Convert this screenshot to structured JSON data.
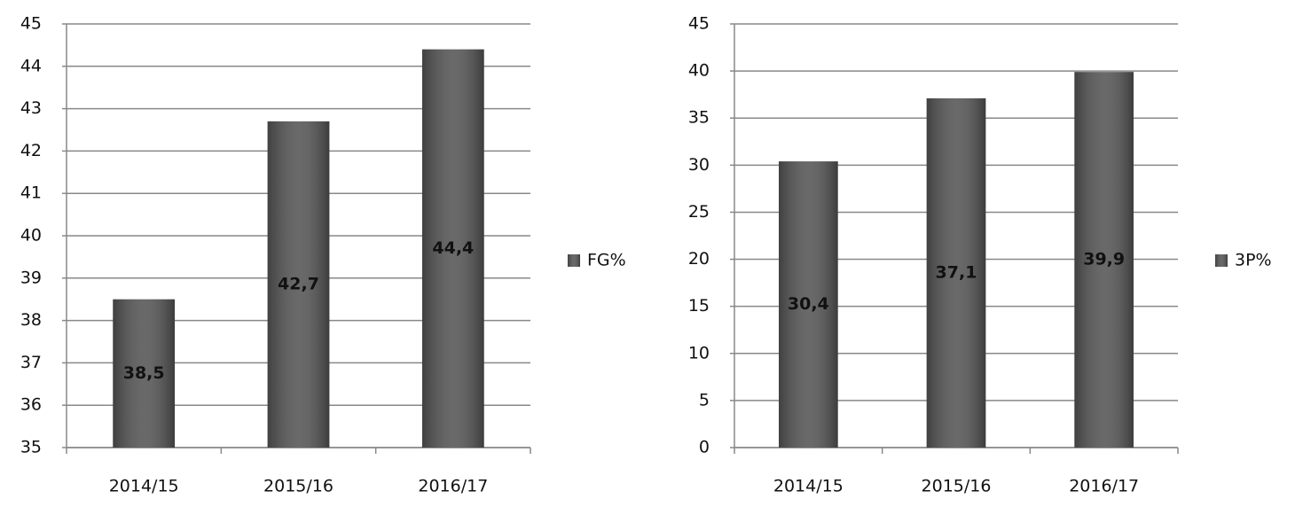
{
  "chart_data": [
    {
      "type": "bar",
      "categories": [
        "2014/15",
        "2015/16",
        "2016/17"
      ],
      "series": [
        {
          "name": "FG%",
          "color": "#555555",
          "values": [
            38.5,
            42.7,
            44.4
          ],
          "value_labels": [
            "38,5",
            "42,7",
            "44,4"
          ]
        }
      ],
      "ylim": [
        35,
        45
      ],
      "yticks": [
        35,
        36,
        37,
        38,
        39,
        40,
        41,
        42,
        43,
        44,
        45
      ],
      "grid": true,
      "legend": "right"
    },
    {
      "type": "bar",
      "categories": [
        "2014/15",
        "2015/16",
        "2016/17"
      ],
      "series": [
        {
          "name": "3P%",
          "color": "#555555",
          "values": [
            30.4,
            37.1,
            39.9
          ],
          "value_labels": [
            "30,4",
            "37,1",
            "39,9"
          ]
        }
      ],
      "ylim": [
        0,
        45
      ],
      "yticks": [
        0,
        5,
        10,
        15,
        20,
        25,
        30,
        35,
        40,
        45
      ],
      "grid": true,
      "legend": "right"
    }
  ]
}
